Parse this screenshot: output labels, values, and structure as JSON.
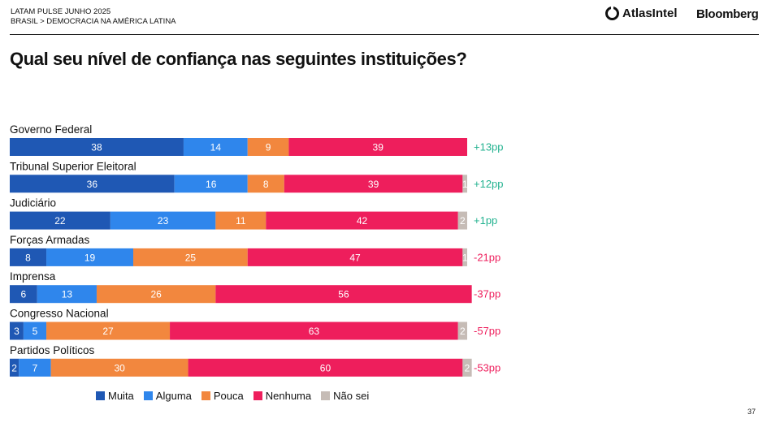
{
  "header": {
    "survey": "LATAM PULSE JUNHO 2025",
    "breadcrumb": "BRASIL > DEMOCRACIA NA AMÉRICA LATINA",
    "logo_atlas": "AtlasIntel",
    "logo_bloomberg": "Bloomberg"
  },
  "title": "Qual seu nível de confiança nas seguintes instituições?",
  "page_number": "37",
  "chart_data": {
    "type": "bar",
    "orientation": "horizontal-stacked",
    "title": "Qual seu nível de confiança nas seguintes instituições?",
    "categories": [
      "Governo Federal",
      "Tribunal Superior Eleitoral",
      "Judiciário",
      "Forças Armadas",
      "Imprensa",
      "Congresso Nacional",
      "Partidos Políticos"
    ],
    "series": [
      {
        "name": "Muita",
        "color": "#1f58b4",
        "values": [
          38,
          36,
          22,
          8,
          6,
          3,
          2
        ]
      },
      {
        "name": "Alguma",
        "color": "#2f86ec",
        "values": [
          14,
          16,
          23,
          19,
          13,
          5,
          7
        ]
      },
      {
        "name": "Pouca",
        "color": "#f2873e",
        "values": [
          9,
          8,
          11,
          25,
          26,
          27,
          30
        ]
      },
      {
        "name": "Nenhuma",
        "color": "#ee1e5c",
        "values": [
          39,
          39,
          42,
          47,
          56,
          63,
          60
        ]
      },
      {
        "name": "Não sei",
        "color": "#c6bcb6",
        "values": [
          0,
          1,
          2,
          1,
          0,
          2,
          2
        ]
      }
    ],
    "net_labels": [
      "+13pp",
      "+12pp",
      "+1pp",
      "-21pp",
      "-37pp",
      "-57pp",
      "-53pp"
    ],
    "net_colors": [
      "#22b28f",
      "#22b28f",
      "#22b28f",
      "#ee1e5c",
      "#ee1e5c",
      "#ee1e5c",
      "#ee1e5c"
    ],
    "xlim": [
      0,
      100
    ],
    "legend": "bottom"
  }
}
